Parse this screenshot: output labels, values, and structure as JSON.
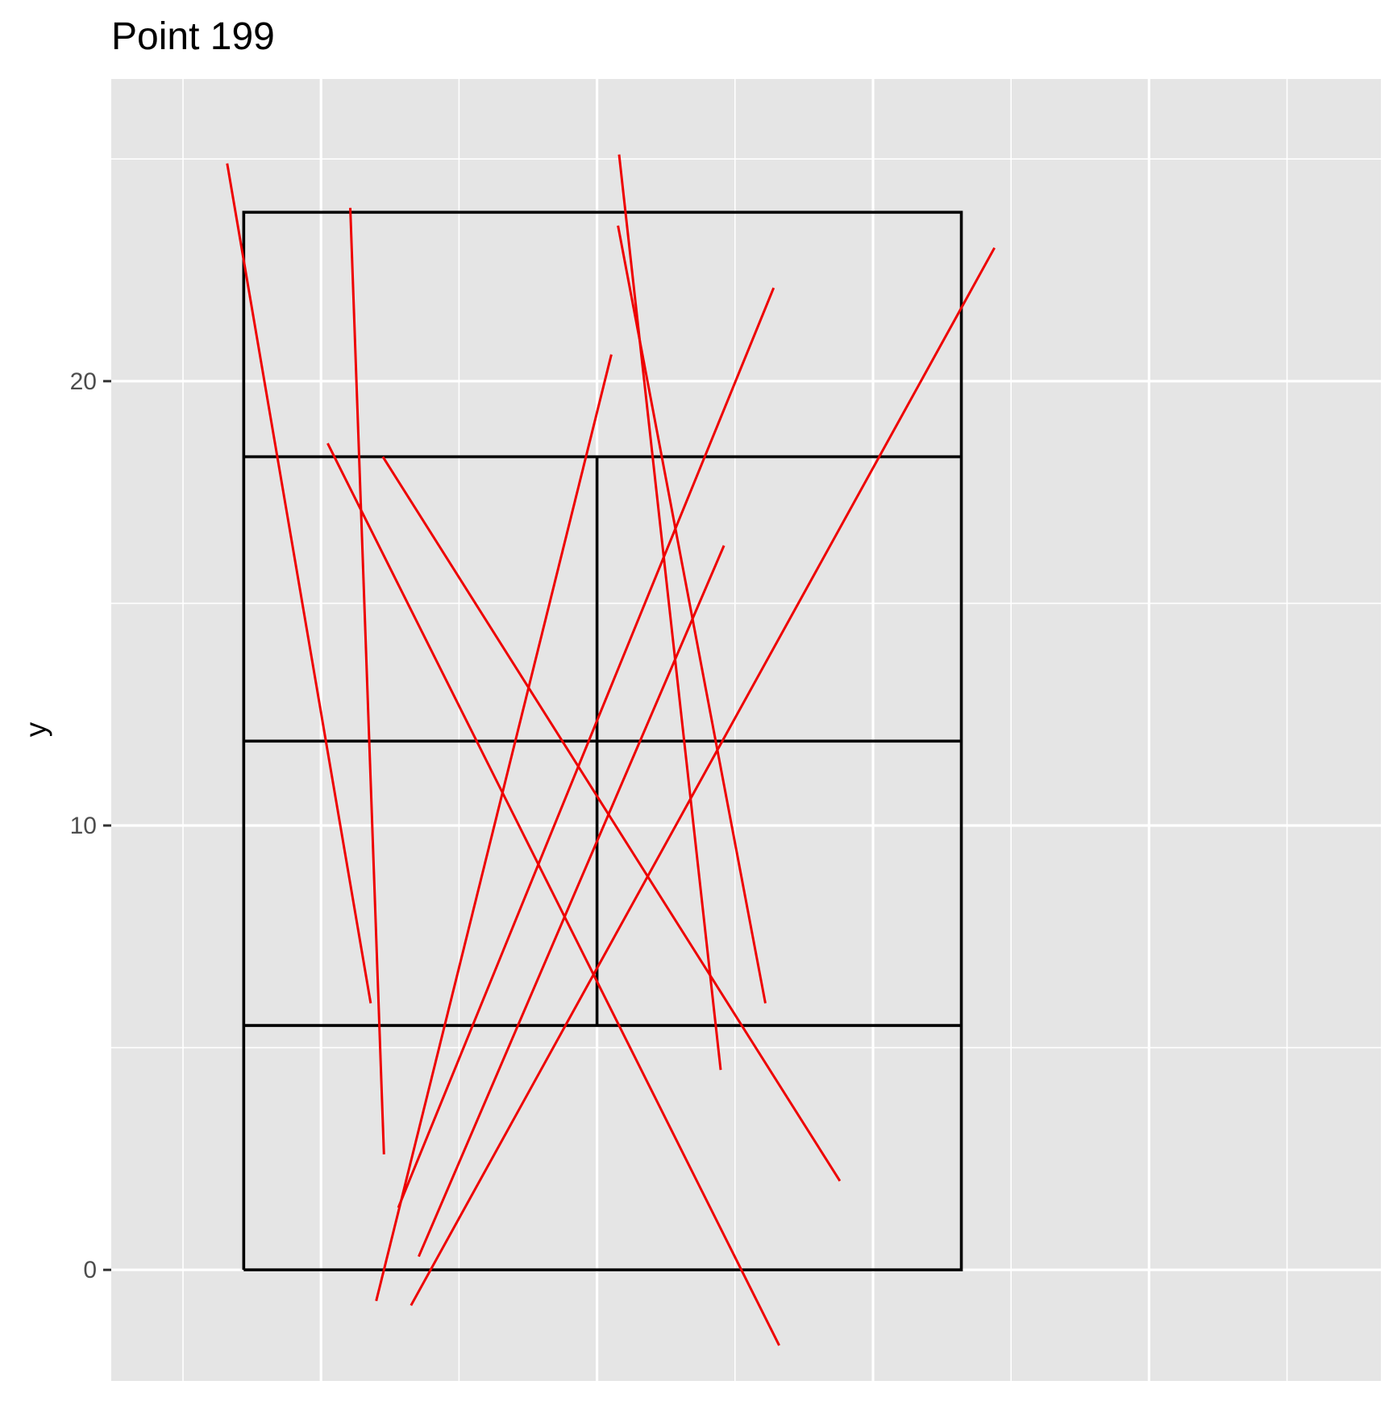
{
  "chart_data": {
    "type": "line",
    "title": "Point 199",
    "xlabel": "",
    "ylabel": "y",
    "xlim": [
      -8.8,
      14.2
    ],
    "ylim": [
      -2.5,
      26.8
    ],
    "x_major_ticks": [
      -5,
      0,
      5,
      10
    ],
    "x_minor_ticks": [
      -7.5,
      -2.5,
      2.5,
      7.5,
      12.5
    ],
    "y_major_ticks": [
      0,
      10,
      20
    ],
    "y_minor_ticks": [
      5,
      15,
      25
    ],
    "y_tick_labels": [
      "0",
      "10",
      "20"
    ],
    "grid": true,
    "court": {
      "outline": [
        [
          -6.4,
          0
        ],
        [
          6.6,
          0
        ],
        [
          6.6,
          23.8
        ],
        [
          -6.4,
          23.8
        ],
        [
          -6.4,
          0
        ]
      ],
      "lines": [
        [
          [
            -6.4,
            5.5
          ],
          [
            6.6,
            5.5
          ]
        ],
        [
          [
            -6.4,
            11.9
          ],
          [
            6.6,
            11.9
          ]
        ],
        [
          [
            -6.4,
            18.3
          ],
          [
            6.6,
            18.3
          ]
        ],
        [
          [
            0,
            5.5
          ],
          [
            0,
            18.3
          ]
        ]
      ]
    },
    "series": [
      {
        "values": [
          [
            -6.7,
            24.9
          ],
          [
            -4.1,
            6.0
          ]
        ]
      },
      {
        "values": [
          [
            -4.47,
            23.9
          ],
          [
            -3.86,
            2.6
          ]
        ]
      },
      {
        "values": [
          [
            -4.88,
            18.6
          ],
          [
            3.3,
            -1.7
          ]
        ]
      },
      {
        "values": [
          [
            -3.88,
            18.3
          ],
          [
            4.4,
            2.0
          ]
        ]
      },
      {
        "values": [
          [
            -4.0,
            -0.7
          ],
          [
            0.26,
            20.6
          ]
        ]
      },
      {
        "values": [
          [
            -3.6,
            1.4
          ],
          [
            3.2,
            22.1
          ]
        ]
      },
      {
        "values": [
          [
            -3.23,
            0.3
          ],
          [
            2.3,
            16.3
          ]
        ]
      },
      {
        "values": [
          [
            -3.37,
            -0.8
          ],
          [
            7.2,
            23.0
          ]
        ]
      },
      {
        "values": [
          [
            0.4,
            25.1
          ],
          [
            2.24,
            4.5
          ]
        ]
      },
      {
        "values": [
          [
            0.38,
            23.5
          ],
          [
            3.05,
            6.0
          ]
        ]
      }
    ]
  }
}
